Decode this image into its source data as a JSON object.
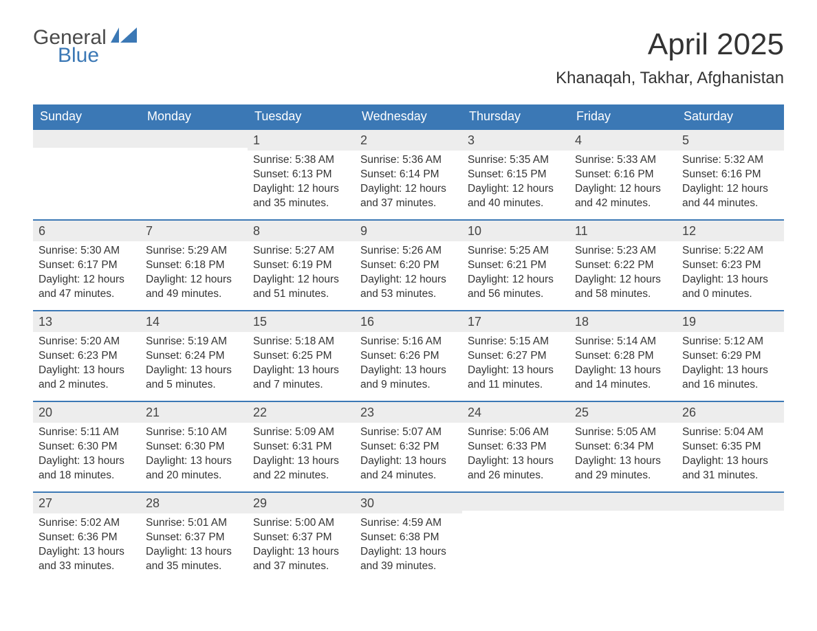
{
  "brand": {
    "name_part1": "General",
    "name_part2": "Blue",
    "colors": {
      "part1": "#4a4a4a",
      "part2": "#3b78b5",
      "flag": "#3b78b5"
    }
  },
  "header": {
    "title": "April 2025",
    "location": "Khanaqah, Takhar, Afghanistan"
  },
  "theme": {
    "header_bg": "#3b78b5",
    "header_text": "#ffffff",
    "row_border": "#3b78b5",
    "daynum_bg": "#ededed",
    "body_text": "#333333",
    "background": "#ffffff"
  },
  "weekdays": [
    "Sunday",
    "Monday",
    "Tuesday",
    "Wednesday",
    "Thursday",
    "Friday",
    "Saturday"
  ],
  "weeks": [
    [
      {
        "day": "",
        "sunrise": "",
        "sunset": "",
        "daylight": ""
      },
      {
        "day": "",
        "sunrise": "",
        "sunset": "",
        "daylight": ""
      },
      {
        "day": "1",
        "sunrise": "Sunrise: 5:38 AM",
        "sunset": "Sunset: 6:13 PM",
        "daylight": "Daylight: 12 hours and 35 minutes."
      },
      {
        "day": "2",
        "sunrise": "Sunrise: 5:36 AM",
        "sunset": "Sunset: 6:14 PM",
        "daylight": "Daylight: 12 hours and 37 minutes."
      },
      {
        "day": "3",
        "sunrise": "Sunrise: 5:35 AM",
        "sunset": "Sunset: 6:15 PM",
        "daylight": "Daylight: 12 hours and 40 minutes."
      },
      {
        "day": "4",
        "sunrise": "Sunrise: 5:33 AM",
        "sunset": "Sunset: 6:16 PM",
        "daylight": "Daylight: 12 hours and 42 minutes."
      },
      {
        "day": "5",
        "sunrise": "Sunrise: 5:32 AM",
        "sunset": "Sunset: 6:16 PM",
        "daylight": "Daylight: 12 hours and 44 minutes."
      }
    ],
    [
      {
        "day": "6",
        "sunrise": "Sunrise: 5:30 AM",
        "sunset": "Sunset: 6:17 PM",
        "daylight": "Daylight: 12 hours and 47 minutes."
      },
      {
        "day": "7",
        "sunrise": "Sunrise: 5:29 AM",
        "sunset": "Sunset: 6:18 PM",
        "daylight": "Daylight: 12 hours and 49 minutes."
      },
      {
        "day": "8",
        "sunrise": "Sunrise: 5:27 AM",
        "sunset": "Sunset: 6:19 PM",
        "daylight": "Daylight: 12 hours and 51 minutes."
      },
      {
        "day": "9",
        "sunrise": "Sunrise: 5:26 AM",
        "sunset": "Sunset: 6:20 PM",
        "daylight": "Daylight: 12 hours and 53 minutes."
      },
      {
        "day": "10",
        "sunrise": "Sunrise: 5:25 AM",
        "sunset": "Sunset: 6:21 PM",
        "daylight": "Daylight: 12 hours and 56 minutes."
      },
      {
        "day": "11",
        "sunrise": "Sunrise: 5:23 AM",
        "sunset": "Sunset: 6:22 PM",
        "daylight": "Daylight: 12 hours and 58 minutes."
      },
      {
        "day": "12",
        "sunrise": "Sunrise: 5:22 AM",
        "sunset": "Sunset: 6:23 PM",
        "daylight": "Daylight: 13 hours and 0 minutes."
      }
    ],
    [
      {
        "day": "13",
        "sunrise": "Sunrise: 5:20 AM",
        "sunset": "Sunset: 6:23 PM",
        "daylight": "Daylight: 13 hours and 2 minutes."
      },
      {
        "day": "14",
        "sunrise": "Sunrise: 5:19 AM",
        "sunset": "Sunset: 6:24 PM",
        "daylight": "Daylight: 13 hours and 5 minutes."
      },
      {
        "day": "15",
        "sunrise": "Sunrise: 5:18 AM",
        "sunset": "Sunset: 6:25 PM",
        "daylight": "Daylight: 13 hours and 7 minutes."
      },
      {
        "day": "16",
        "sunrise": "Sunrise: 5:16 AM",
        "sunset": "Sunset: 6:26 PM",
        "daylight": "Daylight: 13 hours and 9 minutes."
      },
      {
        "day": "17",
        "sunrise": "Sunrise: 5:15 AM",
        "sunset": "Sunset: 6:27 PM",
        "daylight": "Daylight: 13 hours and 11 minutes."
      },
      {
        "day": "18",
        "sunrise": "Sunrise: 5:14 AM",
        "sunset": "Sunset: 6:28 PM",
        "daylight": "Daylight: 13 hours and 14 minutes."
      },
      {
        "day": "19",
        "sunrise": "Sunrise: 5:12 AM",
        "sunset": "Sunset: 6:29 PM",
        "daylight": "Daylight: 13 hours and 16 minutes."
      }
    ],
    [
      {
        "day": "20",
        "sunrise": "Sunrise: 5:11 AM",
        "sunset": "Sunset: 6:30 PM",
        "daylight": "Daylight: 13 hours and 18 minutes."
      },
      {
        "day": "21",
        "sunrise": "Sunrise: 5:10 AM",
        "sunset": "Sunset: 6:30 PM",
        "daylight": "Daylight: 13 hours and 20 minutes."
      },
      {
        "day": "22",
        "sunrise": "Sunrise: 5:09 AM",
        "sunset": "Sunset: 6:31 PM",
        "daylight": "Daylight: 13 hours and 22 minutes."
      },
      {
        "day": "23",
        "sunrise": "Sunrise: 5:07 AM",
        "sunset": "Sunset: 6:32 PM",
        "daylight": "Daylight: 13 hours and 24 minutes."
      },
      {
        "day": "24",
        "sunrise": "Sunrise: 5:06 AM",
        "sunset": "Sunset: 6:33 PM",
        "daylight": "Daylight: 13 hours and 26 minutes."
      },
      {
        "day": "25",
        "sunrise": "Sunrise: 5:05 AM",
        "sunset": "Sunset: 6:34 PM",
        "daylight": "Daylight: 13 hours and 29 minutes."
      },
      {
        "day": "26",
        "sunrise": "Sunrise: 5:04 AM",
        "sunset": "Sunset: 6:35 PM",
        "daylight": "Daylight: 13 hours and 31 minutes."
      }
    ],
    [
      {
        "day": "27",
        "sunrise": "Sunrise: 5:02 AM",
        "sunset": "Sunset: 6:36 PM",
        "daylight": "Daylight: 13 hours and 33 minutes."
      },
      {
        "day": "28",
        "sunrise": "Sunrise: 5:01 AM",
        "sunset": "Sunset: 6:37 PM",
        "daylight": "Daylight: 13 hours and 35 minutes."
      },
      {
        "day": "29",
        "sunrise": "Sunrise: 5:00 AM",
        "sunset": "Sunset: 6:37 PM",
        "daylight": "Daylight: 13 hours and 37 minutes."
      },
      {
        "day": "30",
        "sunrise": "Sunrise: 4:59 AM",
        "sunset": "Sunset: 6:38 PM",
        "daylight": "Daylight: 13 hours and 39 minutes."
      },
      {
        "day": "",
        "sunrise": "",
        "sunset": "",
        "daylight": ""
      },
      {
        "day": "",
        "sunrise": "",
        "sunset": "",
        "daylight": ""
      },
      {
        "day": "",
        "sunrise": "",
        "sunset": "",
        "daylight": ""
      }
    ]
  ]
}
